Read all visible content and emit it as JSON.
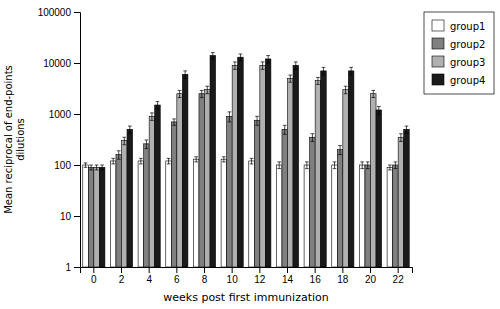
{
  "chart_data": {
    "type": "bar",
    "categories": [
      "0",
      "2",
      "4",
      "6",
      "8",
      "10",
      "12",
      "14",
      "16",
      "18",
      "20",
      "22"
    ],
    "series": [
      {
        "name": "group1",
        "color": "#ffffff",
        "values": [
          100,
          120,
          120,
          120,
          130,
          130,
          120,
          100,
          100,
          100,
          100,
          90
        ],
        "errors": [
          10,
          15,
          15,
          15,
          15,
          15,
          15,
          15,
          15,
          15,
          15,
          10
        ]
      },
      {
        "name": "group2",
        "color": "#808080",
        "values": [
          90,
          160,
          260,
          700,
          2500,
          900,
          750,
          500,
          350,
          200,
          100,
          100
        ],
        "errors": [
          10,
          30,
          50,
          100,
          400,
          200,
          150,
          100,
          60,
          40,
          15,
          15
        ]
      },
      {
        "name": "group3",
        "color": "#b0b0b0",
        "values": [
          90,
          300,
          900,
          2500,
          3000,
          9000,
          9000,
          5000,
          4500,
          3000,
          2500,
          350
        ],
        "errors": [
          10,
          50,
          150,
          400,
          500,
          1500,
          1500,
          800,
          700,
          500,
          400,
          60
        ]
      },
      {
        "name": "group4",
        "color": "#1a1a1a",
        "values": [
          90,
          500,
          1500,
          6000,
          14000,
          13000,
          12000,
          9000,
          7000,
          7000,
          1200,
          500
        ],
        "errors": [
          10,
          80,
          250,
          1000,
          2000,
          2000,
          2000,
          1500,
          1200,
          1200,
          200,
          80
        ]
      }
    ],
    "xlabel": "weeks post first immunization",
    "ylabel": "Mean reciprocal of end-points\ndilutions",
    "ylim": [
      1,
      100000
    ],
    "yticks": [
      1,
      10,
      100,
      1000,
      10000,
      100000
    ],
    "log": "y",
    "grid": false,
    "legend": "right"
  }
}
